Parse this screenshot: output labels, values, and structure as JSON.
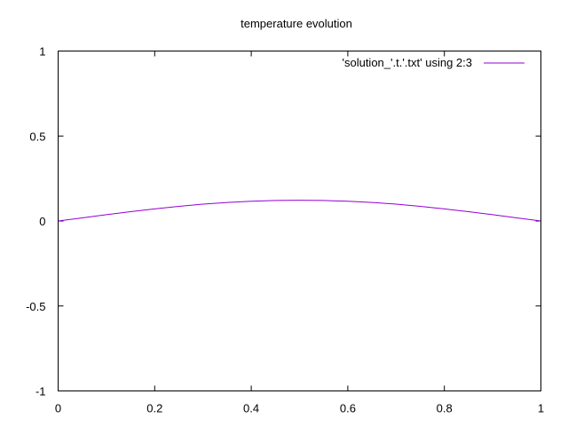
{
  "colors": {
    "series": "#9400d3",
    "frame": "#000000",
    "background": "#ffffff"
  },
  "chart_data": {
    "type": "line",
    "title": "temperature evolution",
    "xlabel": "",
    "ylabel": "",
    "xlim": [
      0,
      1
    ],
    "ylim": [
      -1,
      1
    ],
    "grid": false,
    "legend_position": "top-right",
    "x_ticks": [
      0,
      0.2,
      0.4,
      0.6,
      0.8,
      1
    ],
    "x_tick_labels": [
      "0",
      "0.2",
      "0.4",
      "0.6",
      "0.8",
      "1"
    ],
    "y_ticks": [
      -1,
      -0.5,
      0,
      0.5,
      1
    ],
    "y_tick_labels": [
      "-1",
      "-0.5",
      "0",
      "0.5",
      "1"
    ],
    "series": [
      {
        "name": "'solution_'.t.'.txt' using 2:3",
        "x": [
          0,
          0.05,
          0.1,
          0.15,
          0.2,
          0.25,
          0.3,
          0.35,
          0.4,
          0.45,
          0.5,
          0.55,
          0.6,
          0.65,
          0.7,
          0.75,
          0.8,
          0.85,
          0.9,
          0.95,
          1
        ],
        "y": [
          0,
          0.018,
          0.037,
          0.055,
          0.071,
          0.086,
          0.099,
          0.109,
          0.116,
          0.121,
          0.122,
          0.121,
          0.116,
          0.109,
          0.099,
          0.086,
          0.071,
          0.055,
          0.037,
          0.018,
          0
        ]
      }
    ]
  }
}
